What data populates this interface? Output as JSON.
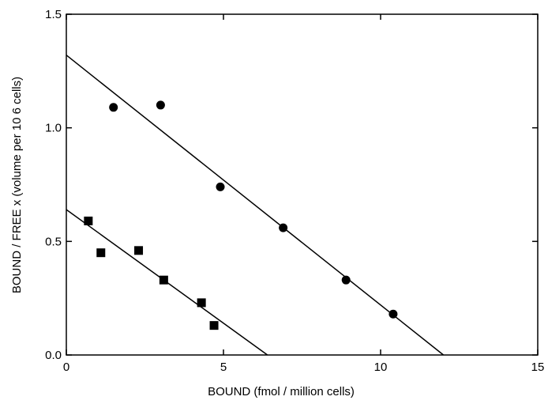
{
  "chart_data": {
    "type": "scatter",
    "title": "",
    "xlabel": "BOUND (fmol / million cells)",
    "ylabel": "BOUND / FREE x (volume per 10 6 cells)",
    "xlim": [
      0,
      15
    ],
    "ylim": [
      0,
      1.5
    ],
    "x_ticks": [
      0,
      5,
      10,
      15
    ],
    "x_tick_labels": [
      "0",
      "5",
      "10",
      "15"
    ],
    "y_ticks": [
      0,
      0.5,
      1.0,
      1.5
    ],
    "y_tick_labels": [
      "0.0",
      "0.5",
      "1.0",
      "1.5"
    ],
    "grid": false,
    "legend": "none",
    "color": "#000000",
    "series": [
      {
        "marker": "circle",
        "points": [
          {
            "x": 1.5,
            "y": 1.09
          },
          {
            "x": 3.0,
            "y": 1.1
          },
          {
            "x": 4.9,
            "y": 0.74
          },
          {
            "x": 6.9,
            "y": 0.56
          },
          {
            "x": 8.9,
            "y": 0.33
          },
          {
            "x": 10.4,
            "y": 0.18
          }
        ],
        "fit_line": {
          "x": [
            0,
            12.0
          ],
          "y": [
            1.32,
            0
          ]
        }
      },
      {
        "marker": "square",
        "points": [
          {
            "x": 0.7,
            "y": 0.59
          },
          {
            "x": 1.1,
            "y": 0.45
          },
          {
            "x": 2.3,
            "y": 0.46
          },
          {
            "x": 3.1,
            "y": 0.33
          },
          {
            "x": 4.3,
            "y": 0.23
          },
          {
            "x": 4.7,
            "y": 0.13
          }
        ],
        "fit_line": {
          "x": [
            0,
            6.4
          ],
          "y": [
            0.64,
            0
          ]
        }
      }
    ]
  }
}
